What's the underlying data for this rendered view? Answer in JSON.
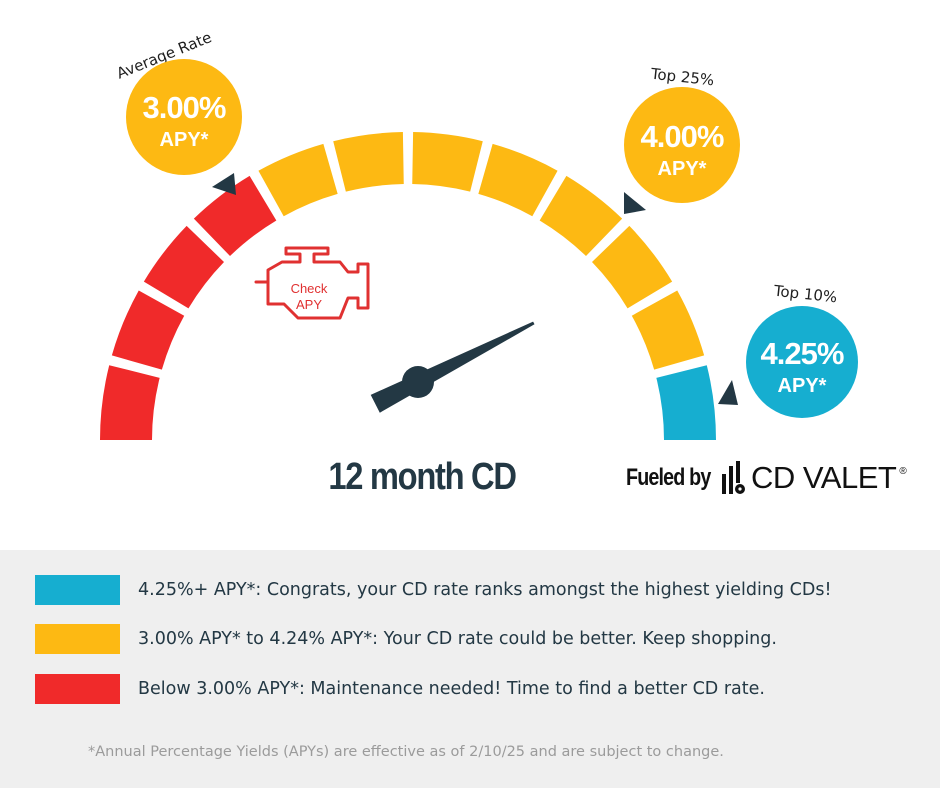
{
  "colors": {
    "red": "#f02a2a",
    "yellow": "#fdb913",
    "teal": "#16aed0",
    "dark": "#233844",
    "panel": "#efefef"
  },
  "gauge": {
    "segment_colors": [
      "red",
      "red",
      "red",
      "red",
      "yellow",
      "yellow",
      "yellow",
      "yellow",
      "yellow",
      "yellow",
      "yellow",
      "teal"
    ],
    "needle_level": 0.85,
    "engine_icon": "check-engine-icon",
    "engine_text_line1": "Check",
    "engine_text_line2": "APY",
    "title": "12 month CD"
  },
  "bubbles": [
    {
      "label": "Average Rate",
      "value": "3.00%",
      "unit": "APY*",
      "color": "yellow"
    },
    {
      "label": "Top 25%",
      "value": "4.00%",
      "unit": "APY*",
      "color": "yellow"
    },
    {
      "label": "Top 10%",
      "value": "4.25%",
      "unit": "APY*",
      "color": "teal"
    }
  ],
  "brand": {
    "prefix": "Fueled by",
    "logo_icon": "cd-valet-logo-icon",
    "name": "CD VALET",
    "registered": "®"
  },
  "legend": [
    {
      "color": "teal",
      "text": "4.25%+ APY*: Congrats, your CD rate ranks amongst the highest yielding CDs!"
    },
    {
      "color": "yellow",
      "text": "3.00% APY* to 4.24% APY*: Your CD rate could be better. Keep shopping."
    },
    {
      "color": "red",
      "text": "Below 3.00% APY*: Maintenance needed! Time to find a better CD rate."
    }
  ],
  "footnote": "*Annual Percentage Yields (APYs) are effective as of 2/10/25 and are subject to change."
}
